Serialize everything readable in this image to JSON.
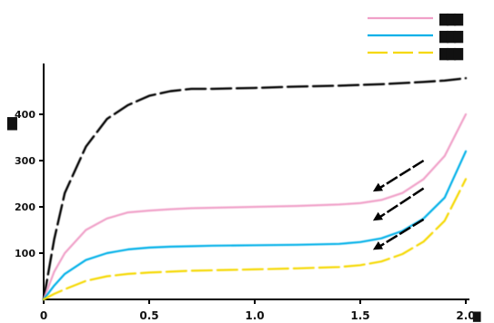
{
  "chart_data": {
    "type": "line",
    "title": "　　　　",
    "ylabel": "▇",
    "xlabel": "▇",
    "x_ticks": [
      "0",
      "0.5",
      "1.0",
      "1.5",
      "2.0"
    ],
    "y_ticks": [
      "100",
      "200",
      "300",
      "400"
    ],
    "xlim": [
      0,
      2.0
    ],
    "ylim": [
      0,
      500
    ],
    "grid": false,
    "legend_position": "top-right",
    "series": [
      {
        "color": "#000000",
        "dash": "long-dash",
        "x": [
          0,
          0.05,
          0.1,
          0.2,
          0.3,
          0.4,
          0.5,
          0.6,
          0.7,
          0.8,
          1.0,
          1.2,
          1.4,
          1.6,
          1.8,
          1.9,
          2.0
        ],
        "y": [
          0,
          130,
          230,
          330,
          390,
          420,
          440,
          450,
          455,
          455,
          457,
          460,
          462,
          465,
          470,
          473,
          478
        ]
      },
      {
        "color": "#f0a0c8",
        "dash": "solid",
        "x": [
          0,
          0.05,
          0.1,
          0.2,
          0.3,
          0.4,
          0.5,
          0.6,
          0.7,
          0.8,
          1.0,
          1.2,
          1.4,
          1.5,
          1.6,
          1.7,
          1.8,
          1.9,
          2.0
        ],
        "y": [
          0,
          60,
          100,
          150,
          175,
          188,
          192,
          195,
          197,
          198,
          200,
          202,
          205,
          208,
          215,
          230,
          260,
          310,
          400
        ]
      },
      {
        "color": "#00b0e8",
        "dash": "solid",
        "x": [
          0,
          0.05,
          0.1,
          0.2,
          0.3,
          0.4,
          0.5,
          0.6,
          0.7,
          0.8,
          1.0,
          1.2,
          1.4,
          1.5,
          1.6,
          1.7,
          1.8,
          1.9,
          2.0
        ],
        "y": [
          0,
          30,
          55,
          85,
          100,
          108,
          112,
          114,
          115,
          116,
          117,
          118,
          120,
          124,
          132,
          148,
          175,
          220,
          320
        ]
      },
      {
        "color": "#f5d800",
        "dash": "long-dash",
        "x": [
          0,
          0.05,
          0.1,
          0.2,
          0.3,
          0.4,
          0.5,
          0.6,
          0.7,
          0.8,
          1.0,
          1.2,
          1.4,
          1.5,
          1.6,
          1.7,
          1.8,
          1.9,
          2.0
        ],
        "y": [
          0,
          12,
          22,
          40,
          50,
          55,
          58,
          60,
          62,
          63,
          65,
          67,
          70,
          74,
          82,
          98,
          125,
          170,
          260
        ]
      }
    ],
    "legend": [
      {
        "label": "▇▇▇",
        "color": "#f0a0c8",
        "dash": "solid"
      },
      {
        "label": "▇▇▇",
        "color": "#00b0e8",
        "dash": "solid"
      },
      {
        "label": "▇▇▇",
        "color": "#f5d800",
        "dash": "long-dash"
      }
    ],
    "annotations": [
      {
        "type": "arrow",
        "from": [
          1.8,
          300
        ],
        "to": [
          1.56,
          233
        ]
      },
      {
        "type": "arrow",
        "from": [
          1.8,
          240
        ],
        "to": [
          1.56,
          170
        ]
      },
      {
        "type": "arrow",
        "from": [
          1.8,
          173
        ],
        "to": [
          1.56,
          107
        ]
      }
    ]
  }
}
